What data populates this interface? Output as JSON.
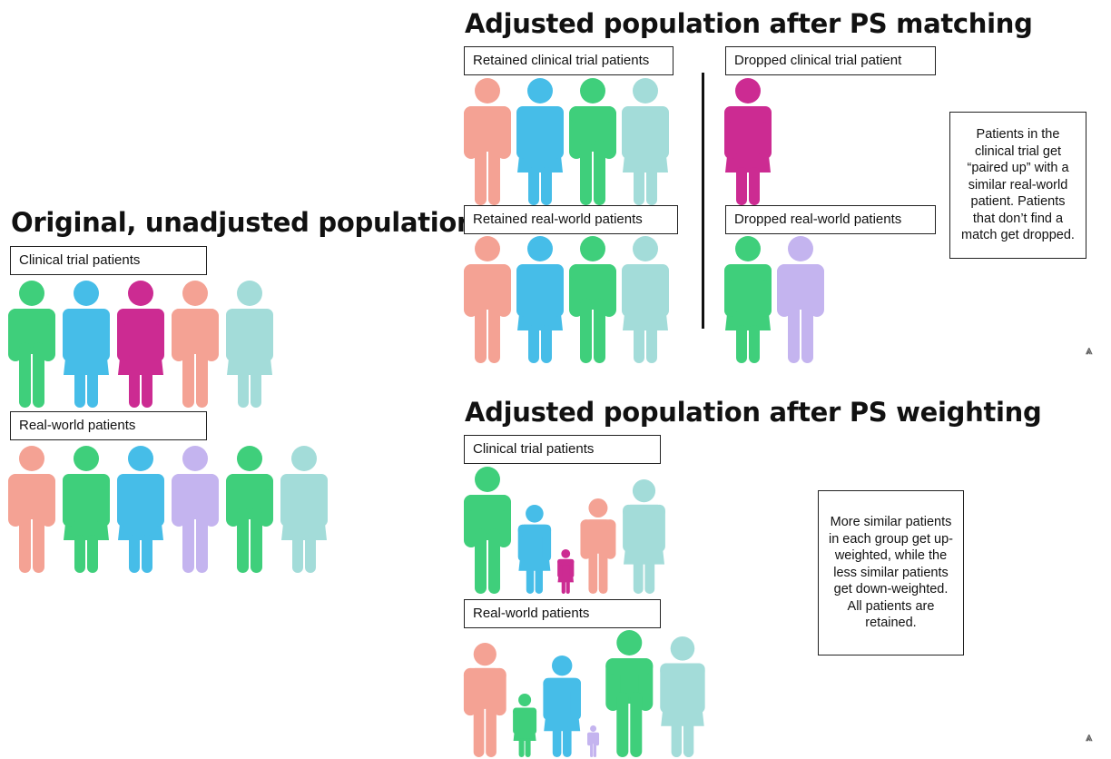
{
  "colors": {
    "green": "#3fcf7b",
    "blue": "#46bde8",
    "magenta": "#cc2b92",
    "salmon": "#f4a294",
    "teal": "#a3dcd9",
    "lavender": "#c4b4ef"
  },
  "original": {
    "title": "Original, unadjusted population",
    "clinical_label": "Clinical trial patients",
    "clinical_people": [
      {
        "gender": "male",
        "color": "green",
        "weight": 1
      },
      {
        "gender": "female",
        "color": "blue",
        "weight": 1
      },
      {
        "gender": "female",
        "color": "magenta",
        "weight": 1
      },
      {
        "gender": "male",
        "color": "salmon",
        "weight": 1
      },
      {
        "gender": "female",
        "color": "teal",
        "weight": 1
      }
    ],
    "realworld_label": "Real-world patients",
    "realworld_people": [
      {
        "gender": "male",
        "color": "salmon",
        "weight": 1
      },
      {
        "gender": "female",
        "color": "green",
        "weight": 1
      },
      {
        "gender": "female",
        "color": "blue",
        "weight": 1
      },
      {
        "gender": "male",
        "color": "lavender",
        "weight": 1
      },
      {
        "gender": "male",
        "color": "green",
        "weight": 1
      },
      {
        "gender": "female",
        "color": "teal",
        "weight": 1
      }
    ]
  },
  "matching": {
    "title": "Adjusted population after PS matching",
    "retained_clinical_label": "Retained clinical trial patients",
    "retained_clinical_people": [
      {
        "gender": "male",
        "color": "salmon",
        "weight": 1
      },
      {
        "gender": "female",
        "color": "blue",
        "weight": 1
      },
      {
        "gender": "male",
        "color": "green",
        "weight": 1
      },
      {
        "gender": "female",
        "color": "teal",
        "weight": 1
      }
    ],
    "dropped_clinical_label": "Dropped clinical trial patient",
    "dropped_clinical_people": [
      {
        "gender": "female",
        "color": "magenta",
        "weight": 1
      }
    ],
    "retained_realworld_label": "Retained real-world patients",
    "retained_realworld_people": [
      {
        "gender": "male",
        "color": "salmon",
        "weight": 1
      },
      {
        "gender": "female",
        "color": "blue",
        "weight": 1
      },
      {
        "gender": "male",
        "color": "green",
        "weight": 1
      },
      {
        "gender": "female",
        "color": "teal",
        "weight": 1
      }
    ],
    "dropped_realworld_label": "Dropped real-world patients",
    "dropped_realworld_people": [
      {
        "gender": "female",
        "color": "green",
        "weight": 1
      },
      {
        "gender": "male",
        "color": "lavender",
        "weight": 1
      }
    ],
    "note": "Patients in the clinical trial get “paired up” with a similar real-world patient. Patients that don’t find a match get dropped."
  },
  "weighting": {
    "title": "Adjusted population after PS weighting",
    "clinical_label": "Clinical trial patients",
    "clinical_people": [
      {
        "gender": "male",
        "color": "green",
        "weight": 1.0
      },
      {
        "gender": "female",
        "color": "blue",
        "weight": 0.7
      },
      {
        "gender": "female",
        "color": "magenta",
        "weight": 0.35
      },
      {
        "gender": "male",
        "color": "salmon",
        "weight": 0.75
      },
      {
        "gender": "female",
        "color": "teal",
        "weight": 0.9
      }
    ],
    "realworld_label": "Real-world patients",
    "realworld_people": [
      {
        "gender": "male",
        "color": "salmon",
        "weight": 0.9
      },
      {
        "gender": "female",
        "color": "green",
        "weight": 0.5
      },
      {
        "gender": "female",
        "color": "blue",
        "weight": 0.8
      },
      {
        "gender": "male",
        "color": "lavender",
        "weight": 0.25
      },
      {
        "gender": "male",
        "color": "green",
        "weight": 1.0
      },
      {
        "gender": "female",
        "color": "teal",
        "weight": 0.95
      }
    ],
    "note": "More similar patients in each group get up-weighted, while the less similar patients get down-weighted. All patients are retained."
  }
}
